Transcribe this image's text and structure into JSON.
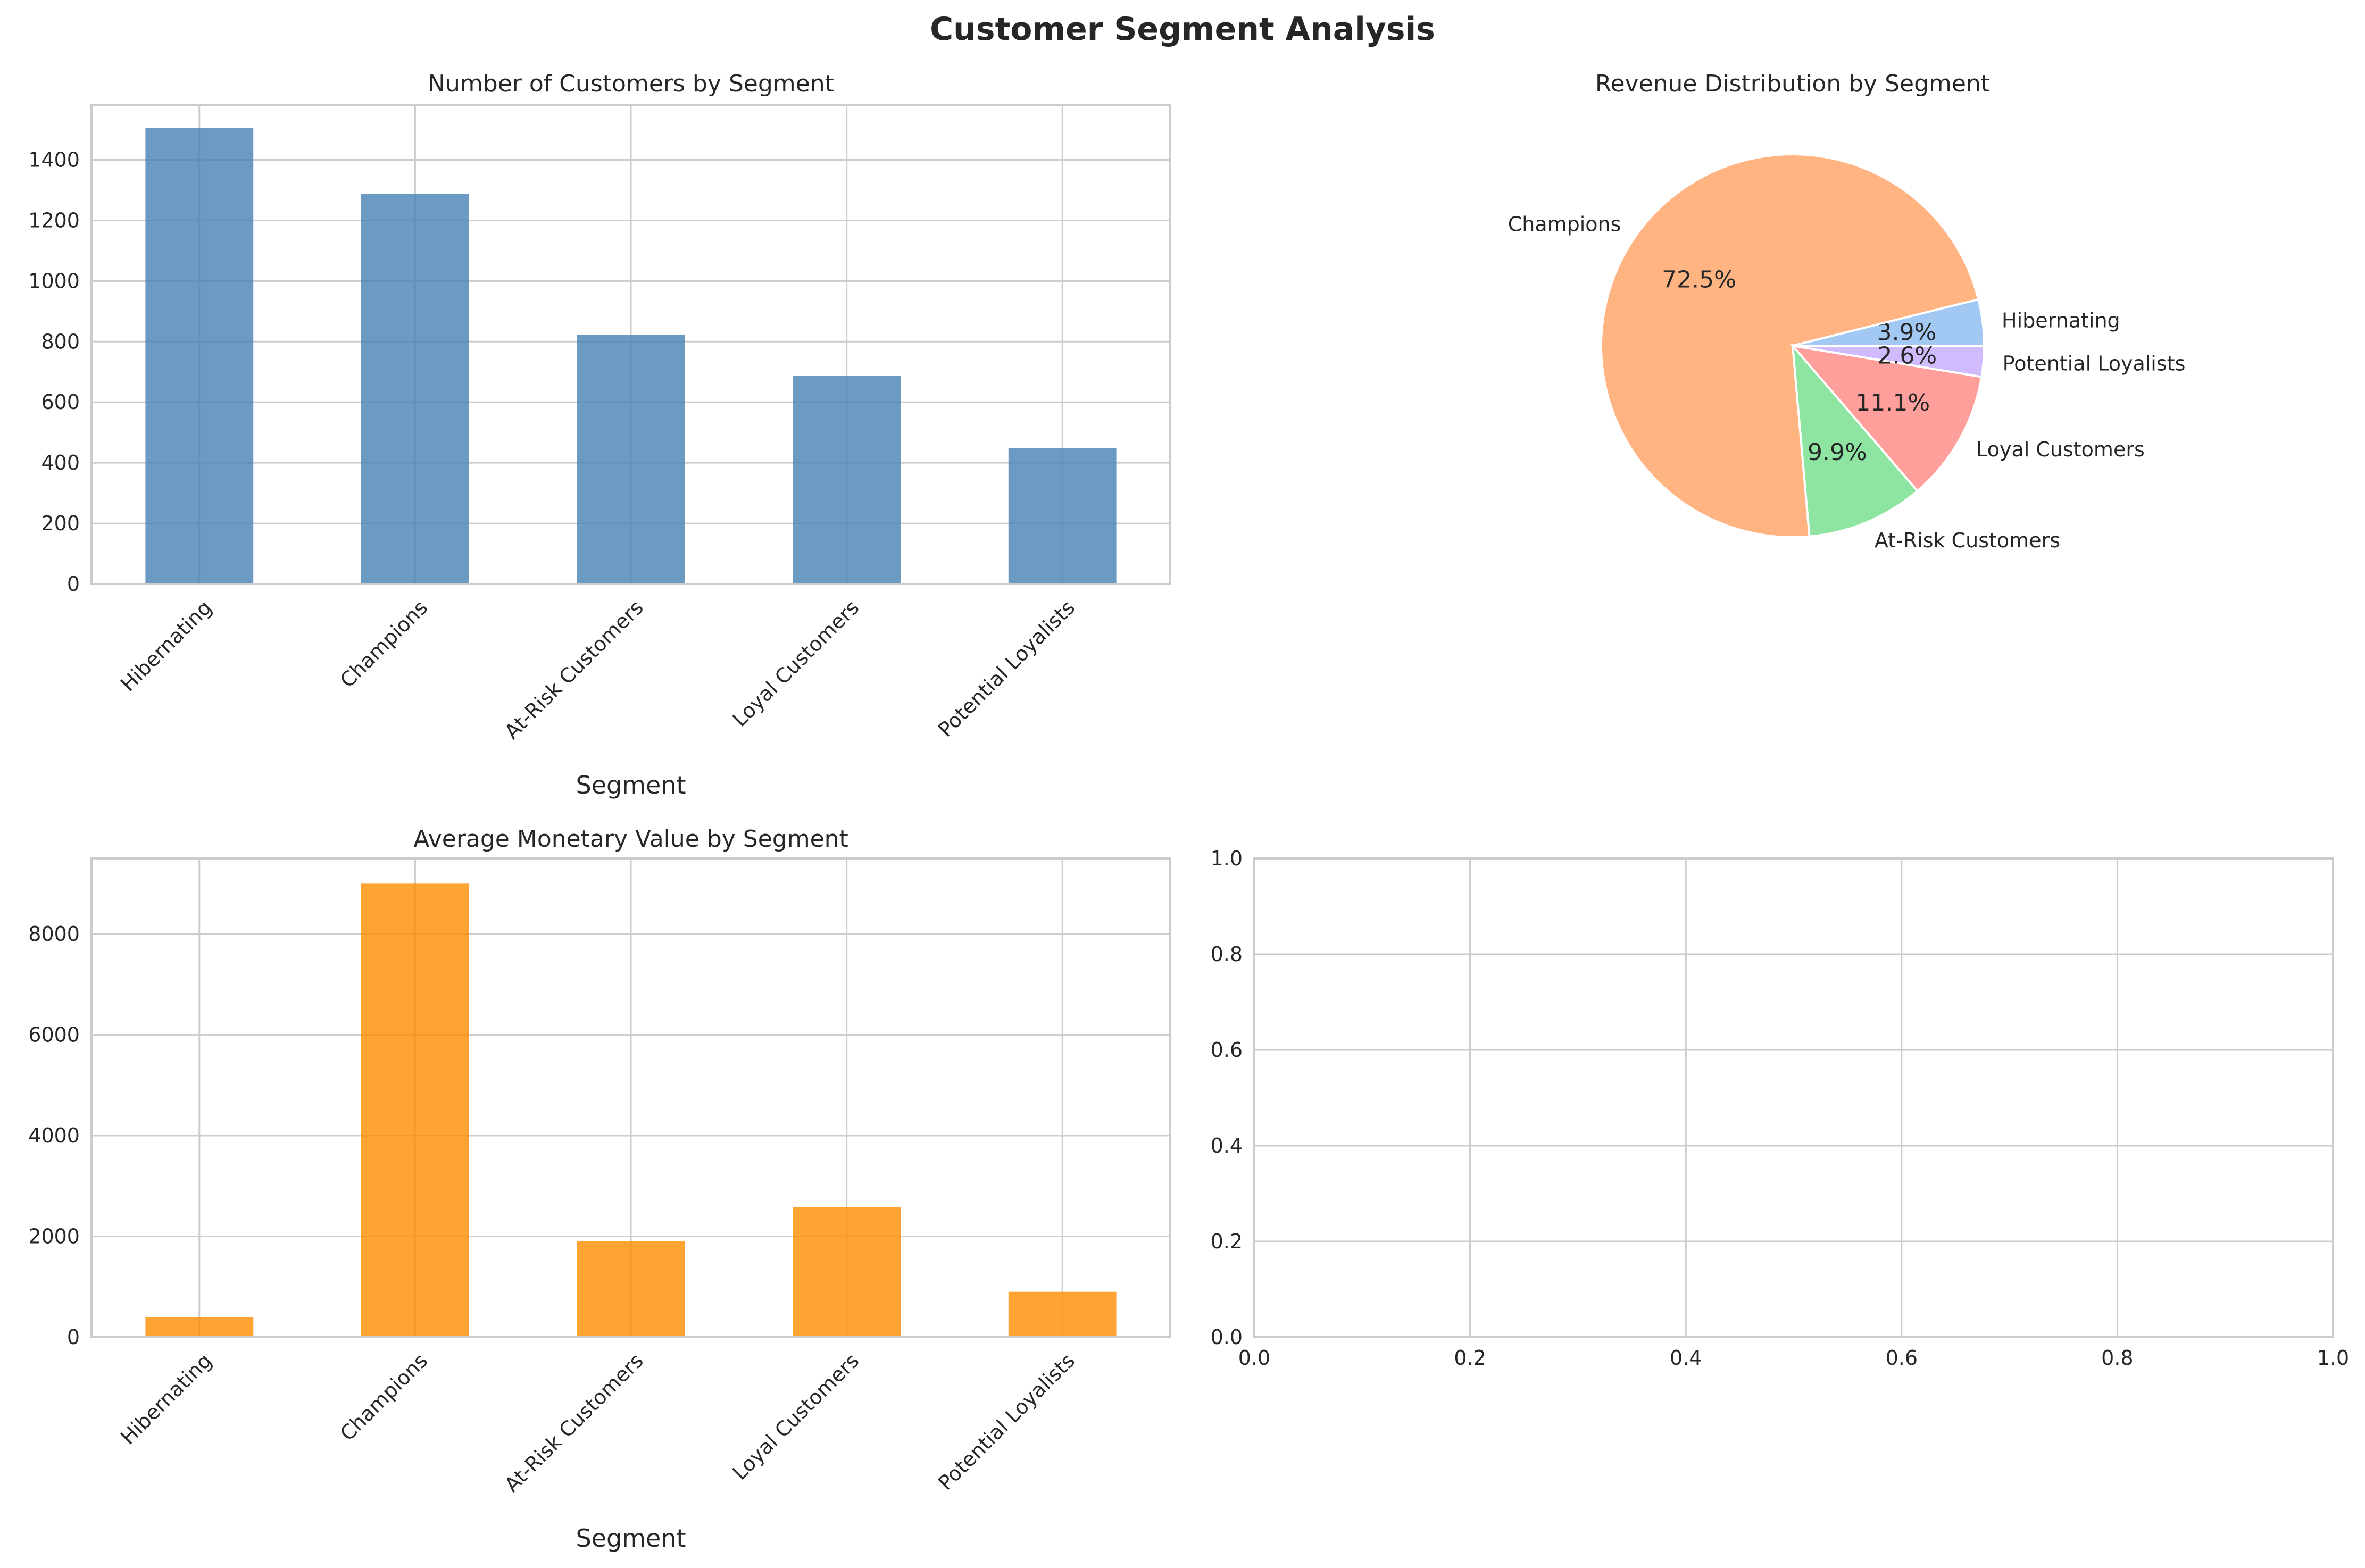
{
  "figure": {
    "title": "Customer Segment Analysis"
  },
  "chart_data": [
    {
      "id": "customers",
      "type": "bar",
      "title": "Number of Customers by Segment",
      "xlabel": "Segment",
      "ylabel": "",
      "categories": [
        "Hibernating",
        "Champions",
        "At-Risk Customers",
        "Loyal Customers",
        "Potential Loyalists"
      ],
      "values": [
        1505,
        1287,
        822,
        688,
        448
      ],
      "ylim": [
        0,
        1580
      ],
      "yticks": [
        0,
        200,
        400,
        600,
        800,
        1000,
        1200,
        1400
      ],
      "color": "#4682b4",
      "grid": true
    },
    {
      "id": "revenue",
      "type": "pie",
      "title": "Revenue Distribution by Segment",
      "labels": [
        "Hibernating",
        "Champions",
        "At-Risk Customers",
        "Loyal Customers",
        "Potential Loyalists"
      ],
      "values": [
        3.9,
        72.5,
        9.9,
        11.1,
        2.6
      ],
      "pct_labels": [
        "3.9%",
        "72.5%",
        "9.9%",
        "11.1%",
        "2.6%"
      ],
      "order": [
        "Potential Loyalists",
        "Hibernating",
        "Champions",
        "At-Risk Customers",
        "Loyal Customers"
      ],
      "colors": {
        "Hibernating": "#a1c9f4",
        "Champions": "#ffb482",
        "At-Risk Customers": "#8de5a1",
        "Loyal Customers": "#ff9f9b",
        "Potential Loyalists": "#d0bbff"
      }
    },
    {
      "id": "monetary",
      "type": "bar",
      "title": "Average Monetary Value by Segment",
      "xlabel": "Segment",
      "ylabel": "",
      "categories": [
        "Hibernating",
        "Champions",
        "At-Risk Customers",
        "Loyal Customers",
        "Potential Loyalists"
      ],
      "values": [
        400,
        9000,
        1900,
        2580,
        900
      ],
      "ylim": [
        0,
        9500
      ],
      "yticks": [
        0,
        2000,
        4000,
        6000,
        8000
      ],
      "color": "#ff8c00",
      "grid": true
    },
    {
      "id": "empty",
      "type": "scatter",
      "title": "",
      "xlabel": "",
      "ylabel": "",
      "xlim": [
        0,
        1
      ],
      "ylim": [
        0,
        1
      ],
      "xticks": [
        0.0,
        0.2,
        0.4,
        0.6,
        0.8,
        1.0
      ],
      "yticks": [
        0.0,
        0.2,
        0.4,
        0.6,
        0.8,
        1.0
      ],
      "tick_labels": [
        "0.0",
        "0.2",
        "0.4",
        "0.6",
        "0.8",
        "1.0"
      ],
      "series": [],
      "grid": true
    }
  ]
}
